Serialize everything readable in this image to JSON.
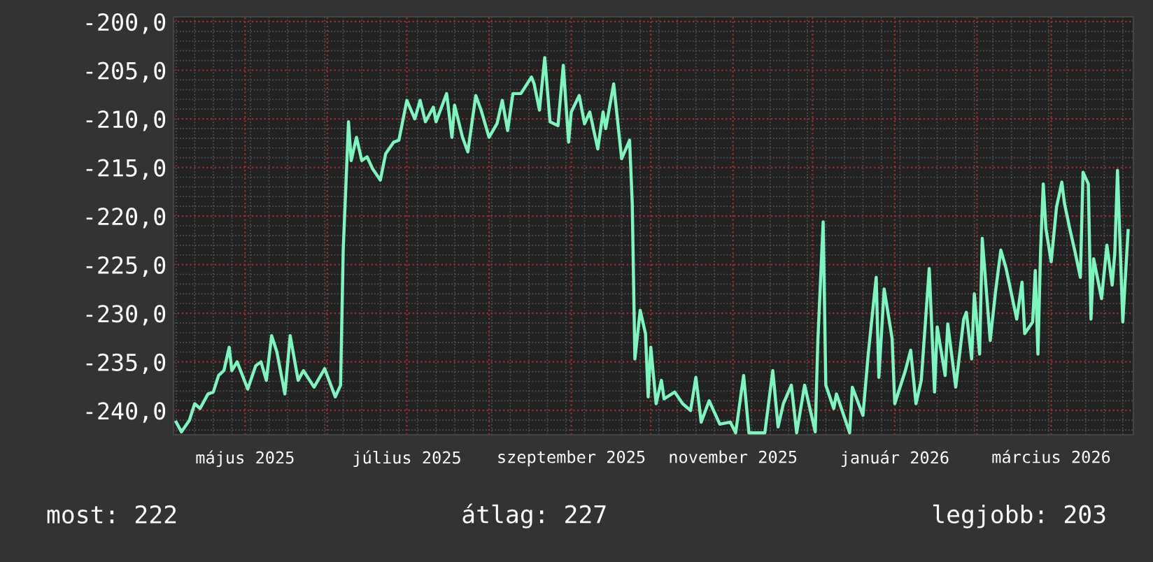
{
  "chart_data": {
    "type": "line",
    "color": "#7df5bf",
    "x": [
      "2025-04-05",
      "2025-04-07",
      "2025-04-10",
      "2025-04-12",
      "2025-04-14",
      "2025-04-17",
      "2025-04-19",
      "2025-04-21",
      "2025-04-23",
      "2025-04-25",
      "2025-04-26",
      "2025-04-28",
      "2025-04-30",
      "2025-05-02",
      "2025-05-05",
      "2025-05-07",
      "2025-05-09",
      "2025-05-11",
      "2025-05-13",
      "2025-05-16",
      "2025-05-18",
      "2025-05-21",
      "2025-05-23",
      "2025-05-27",
      "2025-05-31",
      "2025-06-04",
      "2025-06-06",
      "2025-06-07",
      "2025-06-09",
      "2025-06-10",
      "2025-06-12",
      "2025-06-14",
      "2025-06-16",
      "2025-06-18",
      "2025-06-21",
      "2025-06-23",
      "2025-06-26",
      "2025-06-28",
      "2025-07-01",
      "2025-07-04",
      "2025-07-06",
      "2025-07-08",
      "2025-07-11",
      "2025-07-12",
      "2025-07-16",
      "2025-07-18",
      "2025-07-19",
      "2025-07-22",
      "2025-07-24",
      "2025-07-27",
      "2025-07-29",
      "2025-08-01",
      "2025-08-04",
      "2025-08-06",
      "2025-08-08",
      "2025-08-10",
      "2025-08-13",
      "2025-08-17",
      "2025-08-18",
      "2025-08-20",
      "2025-08-22",
      "2025-08-24",
      "2025-08-27",
      "2025-08-29",
      "2025-08-31",
      "2025-09-01",
      "2025-09-04",
      "2025-09-06",
      "2025-09-08",
      "2025-09-11",
      "2025-09-13",
      "2025-09-14",
      "2025-09-17",
      "2025-09-20",
      "2025-09-23",
      "2025-09-24",
      "2025-09-25",
      "2025-09-27",
      "2025-09-29",
      "2025-09-30",
      "2025-10-01",
      "2025-10-03",
      "2025-10-05",
      "2025-10-06",
      "2025-10-10",
      "2025-10-13",
      "2025-10-16",
      "2025-10-18",
      "2025-10-20",
      "2025-10-23",
      "2025-10-27",
      "2025-10-31",
      "2025-11-02",
      "2025-11-05",
      "2025-11-07",
      "2025-11-13",
      "2025-11-16",
      "2025-11-18",
      "2025-11-20",
      "2025-11-23",
      "2025-11-25",
      "2025-11-28",
      "2025-12-02",
      "2025-12-03",
      "2025-12-05",
      "2025-12-06",
      "2025-12-09",
      "2025-12-10",
      "2025-12-15",
      "2025-12-16",
      "2025-12-20",
      "2025-12-22",
      "2025-12-25",
      "2025-12-26",
      "2025-12-28",
      "2025-12-31",
      "2026-01-01",
      "2026-01-05",
      "2026-01-07",
      "2026-01-09",
      "2026-01-11",
      "2026-01-14",
      "2026-01-16",
      "2026-01-17",
      "2026-01-20",
      "2026-01-21",
      "2026-01-24",
      "2026-01-27",
      "2026-01-28",
      "2026-01-30",
      "2026-01-31",
      "2026-02-02",
      "2026-02-03",
      "2026-02-06",
      "2026-02-08",
      "2026-02-10",
      "2026-02-12",
      "2026-02-16",
      "2026-02-18",
      "2026-02-19",
      "2026-02-22",
      "2026-02-23",
      "2026-02-24",
      "2026-02-25",
      "2026-02-26",
      "2026-02-27",
      "2026-03-01",
      "2026-03-03",
      "2026-03-05",
      "2026-03-06",
      "2026-03-08",
      "2026-03-10",
      "2026-03-12",
      "2026-03-13",
      "2026-03-15",
      "2026-03-16",
      "2026-03-17",
      "2026-03-20",
      "2026-03-22",
      "2026-03-24",
      "2026-03-25",
      "2026-03-26",
      "2026-03-28",
      "2026-03-30"
    ],
    "values": [
      -241.2,
      -242.2,
      -241.0,
      -239.3,
      -239.8,
      -238.3,
      -238.1,
      -236.4,
      -235.9,
      -233.5,
      -235.9,
      -235.0,
      -236.4,
      -237.8,
      -235.4,
      -235.0,
      -236.9,
      -232.3,
      -234.0,
      -238.3,
      -232.3,
      -236.9,
      -235.9,
      -237.6,
      -235.7,
      -238.6,
      -237.4,
      -223.5,
      -210.3,
      -214.3,
      -211.9,
      -214.3,
      -213.9,
      -215.1,
      -216.3,
      -213.6,
      -212.4,
      -212.2,
      -208.1,
      -210.0,
      -208.1,
      -210.3,
      -208.8,
      -210.3,
      -207.4,
      -211.9,
      -208.6,
      -211.9,
      -213.4,
      -207.6,
      -209.1,
      -211.9,
      -210.5,
      -208.1,
      -211.2,
      -207.4,
      -207.4,
      -205.7,
      -206.4,
      -209.1,
      -203.7,
      -210.3,
      -210.7,
      -204.5,
      -212.4,
      -209.3,
      -207.6,
      -210.5,
      -209.3,
      -213.1,
      -209.3,
      -211.0,
      -206.4,
      -214.1,
      -212.2,
      -218.7,
      -234.7,
      -229.7,
      -232.1,
      -238.6,
      -233.5,
      -239.3,
      -236.9,
      -238.8,
      -238.1,
      -239.3,
      -240.0,
      -236.6,
      -241.2,
      -239.0,
      -241.4,
      -241.2,
      -242.3,
      -236.4,
      -242.3,
      -242.3,
      -235.9,
      -241.7,
      -239.3,
      -237.4,
      -242.3,
      -237.4,
      -242.2,
      -232.8,
      -220.6,
      -237.4,
      -239.8,
      -238.3,
      -242.3,
      -237.6,
      -240.5,
      -234.2,
      -226.3,
      -236.6,
      -227.5,
      -232.6,
      -239.3,
      -235.9,
      -233.8,
      -239.3,
      -236.9,
      -225.4,
      -238.1,
      -231.4,
      -236.4,
      -231.1,
      -237.6,
      -230.6,
      -229.9,
      -234.7,
      -228.0,
      -234.2,
      -222.3,
      -232.8,
      -227.8,
      -223.5,
      -225.4,
      -230.6,
      -226.8,
      -232.1,
      -230.9,
      -225.6,
      -234.2,
      -223.5,
      -216.7,
      -221.3,
      -224.7,
      -219.1,
      -216.5,
      -218.7,
      -221.3,
      -223.7,
      -226.3,
      -215.5,
      -216.7,
      -230.6,
      -224.4,
      -228.5,
      -223.0,
      -227.1,
      -223.7,
      -215.3,
      -230.9,
      -221.5
    ],
    "xlim": [
      "2025-04-04",
      "2026-04-01"
    ],
    "xticks": [
      {
        "value": "2025-05-01",
        "label": "május 2025"
      },
      {
        "value": "2025-06-01",
        "label": null
      },
      {
        "value": "2025-07-01",
        "label": "július 2025"
      },
      {
        "value": "2025-08-01",
        "label": null
      },
      {
        "value": "2025-09-01",
        "label": "szeptember 2025"
      },
      {
        "value": "2025-10-01",
        "label": null
      },
      {
        "value": "2025-11-01",
        "label": "november 2025"
      },
      {
        "value": "2025-12-01",
        "label": null
      },
      {
        "value": "2026-01-01",
        "label": "január 2026"
      },
      {
        "value": "2026-02-01",
        "label": null
      },
      {
        "value": "2026-03-01",
        "label": "március 2026"
      }
    ],
    "ylim": [
      -242.5,
      -199.5
    ],
    "yticks": [
      {
        "value": -240,
        "label": "-240,0"
      },
      {
        "value": -235,
        "label": "-235,0"
      },
      {
        "value": -230,
        "label": "-230,0"
      },
      {
        "value": -225,
        "label": "-225,0"
      },
      {
        "value": -220,
        "label": "-220,0"
      },
      {
        "value": -215,
        "label": "-215,0"
      },
      {
        "value": -210,
        "label": "-210,0"
      },
      {
        "value": -205,
        "label": "-205,0"
      },
      {
        "value": -200,
        "label": "-200,0"
      }
    ],
    "grid": true,
    "marker": "none",
    "line_style": "solid",
    "annotations": [
      "most: 222",
      "átlag: 227",
      "legjobb: 203"
    ]
  }
}
